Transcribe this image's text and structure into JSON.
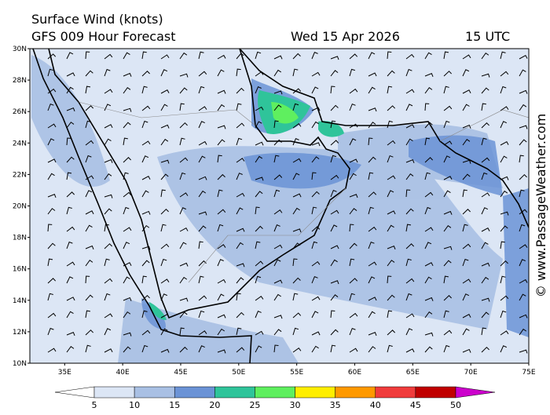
{
  "header": {
    "title": "Surface Wind (knots)",
    "model": "GFS 009 Hour Forecast",
    "date": "Wed 15 Apr 2026",
    "time": "15 UTC"
  },
  "credit": "© www.PassageWeather.com",
  "map": {
    "lat_ticks": [
      {
        "value": 30,
        "label": "30N"
      },
      {
        "value": 28,
        "label": "28N"
      },
      {
        "value": 26,
        "label": "26N"
      },
      {
        "value": 24,
        "label": "24N"
      },
      {
        "value": 22,
        "label": "22N"
      },
      {
        "value": 20,
        "label": "20N"
      },
      {
        "value": 18,
        "label": "18N"
      },
      {
        "value": 16,
        "label": "16N"
      },
      {
        "value": 14,
        "label": "14N"
      },
      {
        "value": 12,
        "label": "12N"
      },
      {
        "value": 10,
        "label": "10N"
      }
    ],
    "lon_ticks": [
      {
        "value": 35,
        "label": "35E"
      },
      {
        "value": 40,
        "label": "40E"
      },
      {
        "value": 45,
        "label": "45E"
      },
      {
        "value": 50,
        "label": "50E"
      },
      {
        "value": 55,
        "label": "55E"
      },
      {
        "value": 60,
        "label": "60E"
      },
      {
        "value": 65,
        "label": "65E"
      },
      {
        "value": 70,
        "label": "70E"
      },
      {
        "value": 75,
        "label": "75E"
      }
    ]
  },
  "colorbar": {
    "ticks": [
      5,
      10,
      15,
      20,
      25,
      30,
      35,
      40,
      45,
      50
    ],
    "colors": [
      "#ffffff",
      "#dce6f5",
      "#a9c0e4",
      "#6b93d6",
      "#2fc49a",
      "#5fef5f",
      "#ffee00",
      "#ff9900",
      "#f03c3c",
      "#c00000",
      "#cc00cc"
    ]
  }
}
